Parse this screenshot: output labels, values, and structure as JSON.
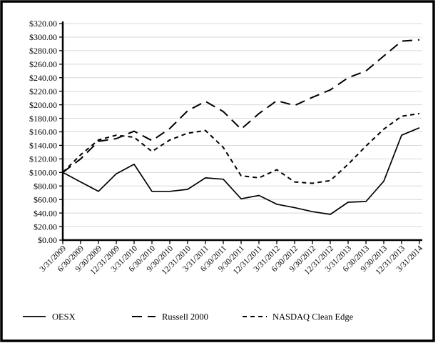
{
  "figure": {
    "type_label": "stock-performance-line-chart",
    "background_color": "#ffffff",
    "border_color": "#000000",
    "grid_color": "#d8d8d8",
    "axis_color": "#000000"
  },
  "chart_data": {
    "type": "line",
    "title": "",
    "xlabel": "",
    "ylabel": "",
    "ylim": [
      0,
      320
    ],
    "y_step": 20,
    "grid": "horizontal",
    "legend_position": "bottom",
    "y_tick_labels": [
      "$0.00",
      "$20.00",
      "$40.00",
      "$60.00",
      "$80.00",
      "$100.00",
      "$120.00",
      "$140.00",
      "$160.00",
      "$180.00",
      "$200.00",
      "$220.00",
      "$240.00",
      "$260.00",
      "$280.00",
      "$300.00",
      "$320.00"
    ],
    "y_tick_values": [
      0,
      20,
      40,
      60,
      80,
      100,
      120,
      140,
      160,
      180,
      200,
      220,
      240,
      260,
      280,
      300,
      320
    ],
    "x_labels": [
      "3/31/2009",
      "6/30/2009",
      "9/30/2009",
      "12/31/2009",
      "3/31/2010",
      "6/30/2010",
      "9/30/2010",
      "12/31/2010",
      "3/31/2011",
      "6/30/2011",
      "9/30/2011",
      "12/31/2011",
      "3/31/2012",
      "6/30/2012",
      "9/30/2012",
      "12/31/2012",
      "3/31/2013",
      "6/30/2013",
      "9/30/2013",
      "12/31/2013",
      "3/31/2014"
    ],
    "series": [
      {
        "name": "OESX",
        "line_style": "solid",
        "color": "#000000",
        "values": [
          100,
          86,
          72,
          98,
          112,
          72,
          72,
          75,
          92,
          90,
          61,
          66,
          53,
          48,
          42,
          38,
          56,
          57,
          87,
          155,
          166
        ]
      },
      {
        "name": "Russell 2000",
        "line_style": "long-dash",
        "color": "#000000",
        "values": [
          100,
          120,
          146,
          150,
          161,
          147,
          165,
          191,
          205,
          190,
          164,
          187,
          206,
          199,
          211,
          222,
          240,
          250,
          272,
          294,
          296
        ]
      },
      {
        "name": "NASDAQ Clean Edge",
        "line_style": "short-dash",
        "color": "#000000",
        "values": [
          100,
          126,
          148,
          155,
          152,
          131,
          148,
          158,
          162,
          137,
          95,
          92,
          104,
          86,
          84,
          88,
          112,
          139,
          164,
          183,
          187
        ]
      }
    ],
    "legend_labels": [
      "OESX",
      "Russell 2000",
      "NASDAQ Clean Edge"
    ]
  }
}
